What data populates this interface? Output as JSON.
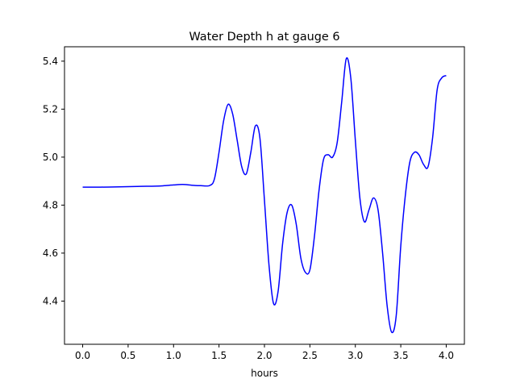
{
  "chart_data": {
    "type": "line",
    "title": "Water Depth h at gauge 6",
    "xlabel": "hours",
    "ylabel": "",
    "xlim": [
      -0.2,
      4.2
    ],
    "ylim": [
      4.22,
      5.46
    ],
    "xticks": [
      0.0,
      0.5,
      1.0,
      1.5,
      2.0,
      2.5,
      3.0,
      3.5,
      4.0
    ],
    "xtick_labels": [
      "0.0",
      "0.5",
      "1.0",
      "1.5",
      "2.0",
      "2.5",
      "3.0",
      "3.5",
      "4.0"
    ],
    "yticks": [
      4.4,
      4.6,
      4.8,
      5.0,
      5.2,
      5.4
    ],
    "ytick_labels": [
      "4.4",
      "4.6",
      "4.8",
      "5.0",
      "5.2",
      "5.4"
    ],
    "grid": false,
    "series": [
      {
        "name": "",
        "color": "#0000ff",
        "x": [
          0.0,
          0.2,
          0.4,
          0.6,
          0.8,
          0.9,
          1.0,
          1.1,
          1.2,
          1.3,
          1.4,
          1.45,
          1.5,
          1.55,
          1.6,
          1.65,
          1.7,
          1.75,
          1.8,
          1.85,
          1.9,
          1.95,
          2.0,
          2.05,
          2.1,
          2.15,
          2.2,
          2.25,
          2.3,
          2.35,
          2.4,
          2.45,
          2.5,
          2.55,
          2.6,
          2.65,
          2.7,
          2.75,
          2.8,
          2.85,
          2.9,
          2.95,
          3.0,
          3.05,
          3.1,
          3.15,
          3.2,
          3.25,
          3.3,
          3.35,
          3.4,
          3.45,
          3.5,
          3.55,
          3.6,
          3.65,
          3.7,
          3.75,
          3.8,
          3.85,
          3.9,
          3.95,
          4.0
        ],
        "y": [
          4.875,
          4.875,
          4.876,
          4.878,
          4.879,
          4.881,
          4.884,
          4.886,
          4.883,
          4.881,
          4.882,
          4.91,
          5.02,
          5.15,
          5.22,
          5.18,
          5.07,
          4.96,
          4.93,
          5.02,
          5.13,
          5.08,
          4.82,
          4.55,
          4.39,
          4.44,
          4.64,
          4.77,
          4.8,
          4.72,
          4.58,
          4.52,
          4.53,
          4.67,
          4.86,
          4.99,
          5.01,
          5.0,
          5.06,
          5.23,
          5.41,
          5.33,
          5.07,
          4.83,
          4.73,
          4.78,
          4.83,
          4.78,
          4.6,
          4.38,
          4.27,
          4.34,
          4.63,
          4.84,
          4.98,
          5.02,
          5.01,
          4.97,
          4.96,
          5.08,
          5.28,
          5.33,
          5.34
        ]
      }
    ]
  }
}
